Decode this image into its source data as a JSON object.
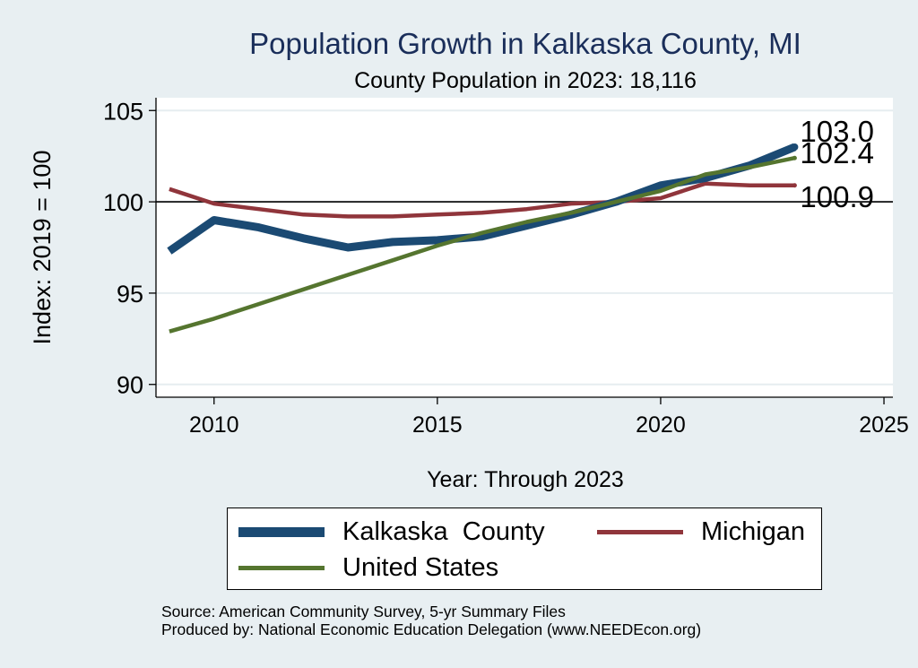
{
  "chart_data": {
    "type": "line",
    "title": "Population Growth in Kalkaska County, MI",
    "subtitle": "County Population in 2023: 18,116",
    "xlabel": "Year: Through 2023",
    "ylabel": "Index: 2019 = 100",
    "xlim": [
      2008.7,
      2025.2
    ],
    "ylim": [
      89.3,
      105.7
    ],
    "x_ticks": [
      2010,
      2015,
      2020,
      2025
    ],
    "y_ticks": [
      90,
      95,
      100,
      105
    ],
    "reference_line": 100,
    "grid": true,
    "legend_position": "bottom",
    "x": [
      2009,
      2010,
      2011,
      2012,
      2013,
      2014,
      2015,
      2016,
      2017,
      2018,
      2019,
      2020,
      2021,
      2022,
      2023
    ],
    "series": [
      {
        "name": "Kalkaska  County",
        "color": "#1b4a73",
        "values": [
          97.3,
          99.0,
          98.6,
          98.0,
          97.5,
          97.8,
          97.9,
          98.1,
          98.7,
          99.3,
          100.0,
          100.9,
          101.3,
          102.0,
          103.0
        ],
        "end_label": "103.0"
      },
      {
        "name": "Michigan",
        "color": "#90353b",
        "values": [
          100.7,
          99.9,
          99.6,
          99.3,
          99.2,
          99.2,
          99.3,
          99.4,
          99.6,
          99.9,
          100.0,
          100.2,
          101.0,
          100.9,
          100.9
        ],
        "end_label": "100.9"
      },
      {
        "name": "United States",
        "color": "#55752f",
        "values": [
          92.9,
          93.6,
          94.4,
          95.2,
          96.0,
          96.8,
          97.6,
          98.3,
          98.9,
          99.4,
          100.0,
          100.6,
          101.5,
          101.9,
          102.4
        ],
        "end_label": "102.4"
      }
    ],
    "legend": {
      "entries": [
        "Kalkaska  County",
        "Michigan",
        "United States"
      ]
    }
  },
  "footer": {
    "source": "Source: American Community Survey, 5-yr Summary Files",
    "produced": "Produced by: National Economic Education Delegation (www.NEEDEcon.org)"
  }
}
